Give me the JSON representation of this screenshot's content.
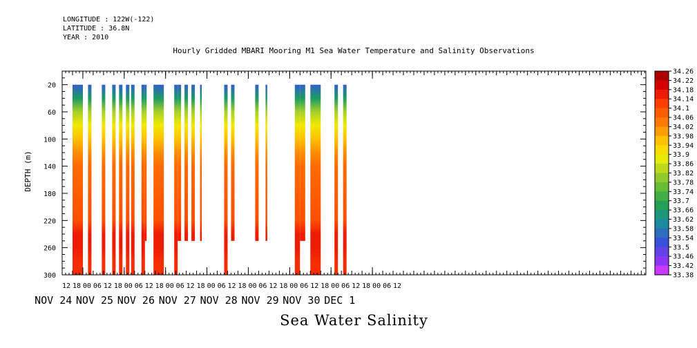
{
  "header": {
    "longitude": "LONGITUDE : 122W(-122)",
    "latitude": "LATITUDE : 36.8N",
    "year": "YEAR : 2010"
  },
  "chart_data": {
    "type": "heatmap",
    "title": "Hourly Gridded MBARI Mooring M1 Sea Water Temperature and Salinity Observations",
    "footer_title": "Sea Water Salinity",
    "ylabel": "DEPTH (m)",
    "xlabel": "",
    "y_axis": {
      "reversed": true,
      "ylim": [
        300,
        0
      ],
      "ticks": [
        20,
        60,
        100,
        140,
        180,
        220,
        260,
        300
      ]
    },
    "x_axis": {
      "hour_labels": [
        "12",
        "18",
        "00",
        "06",
        "12",
        "18",
        "00",
        "06",
        "12",
        "18",
        "00",
        "06",
        "12",
        "18",
        "00",
        "06",
        "12",
        "18",
        "00",
        "06",
        "12",
        "18",
        "00",
        "06",
        "12",
        "18",
        "00",
        "06",
        "12",
        "18",
        "00",
        "06",
        "12"
      ],
      "day_labels": [
        "NOV 24",
        "NOV 25",
        "NOV 26",
        "NOV 27",
        "NOV 28",
        "NOV 29",
        "NOV 30",
        "DEC  1"
      ]
    },
    "colorbar": {
      "labels": [
        "34.26",
        "34.22",
        "34.18",
        "34.14",
        "34.1",
        "34.06",
        "34.02",
        "33.98",
        "33.94",
        "33.9",
        "33.86",
        "33.82",
        "33.78",
        "33.74",
        "33.7",
        "33.66",
        "33.62",
        "33.58",
        "33.54",
        "33.5",
        "33.46",
        "33.42",
        "33.38"
      ],
      "range": [
        33.38,
        34.26
      ]
    },
    "profile": [
      [
        20,
        33.54
      ],
      [
        40,
        33.66
      ],
      [
        60,
        33.82
      ],
      [
        80,
        33.9
      ],
      [
        100,
        33.96
      ],
      [
        120,
        34.02
      ],
      [
        140,
        34.06
      ],
      [
        180,
        34.08
      ],
      [
        220,
        34.1
      ],
      [
        240,
        34.16
      ],
      [
        260,
        34.16
      ],
      [
        280,
        34.14
      ],
      [
        300,
        34.14
      ]
    ],
    "observation_bars": [
      {
        "start": "NOV 24 18",
        "end": "NOV 25 00",
        "max_depth": 300
      },
      {
        "start": "NOV 25 03",
        "end": "NOV 25 05",
        "max_depth": 300
      },
      {
        "start": "NOV 25 11",
        "end": "NOV 25 13",
        "max_depth": 300
      },
      {
        "start": "NOV 25 17",
        "end": "NOV 25 19",
        "max_depth": 300
      },
      {
        "start": "NOV 25 21",
        "end": "NOV 25 23",
        "max_depth": 300
      },
      {
        "start": "NOV 26 01",
        "end": "NOV 26 03",
        "max_depth": 300
      },
      {
        "start": "NOV 26 04",
        "end": "NOV 26 06",
        "max_depth": 300
      },
      {
        "start": "NOV 26 10",
        "end": "NOV 26 12",
        "max_depth": 300
      },
      {
        "start": "NOV 26 12",
        "end": "NOV 26 13",
        "max_depth": 250
      },
      {
        "start": "NOV 26 17",
        "end": "NOV 26 23",
        "max_depth": 300
      },
      {
        "start": "NOV 27 05",
        "end": "NOV 27 07",
        "max_depth": 300
      },
      {
        "start": "NOV 27 07",
        "end": "NOV 27 09",
        "max_depth": 250
      },
      {
        "start": "NOV 27 11",
        "end": "NOV 27 13",
        "max_depth": 250
      },
      {
        "start": "NOV 27 15",
        "end": "NOV 27 17",
        "max_depth": 250
      },
      {
        "start": "NOV 27 20",
        "end": "NOV 27 21",
        "max_depth": 250
      },
      {
        "start": "NOV 28 10",
        "end": "NOV 28 12",
        "max_depth": 300
      },
      {
        "start": "NOV 28 14",
        "end": "NOV 28 16",
        "max_depth": 250
      },
      {
        "start": "NOV 29 04",
        "end": "NOV 29 06",
        "max_depth": 250
      },
      {
        "start": "NOV 29 10",
        "end": "NOV 29 11",
        "max_depth": 250
      },
      {
        "start": "NOV 30 03",
        "end": "NOV 30 06",
        "max_depth": 300
      },
      {
        "start": "NOV 30 06",
        "end": "NOV 30 09",
        "max_depth": 250
      },
      {
        "start": "NOV 30 12",
        "end": "NOV 30 18",
        "max_depth": 300
      },
      {
        "start": "DEC 1 02",
        "end": "DEC 1 04",
        "max_depth": 300
      },
      {
        "start": "DEC 1 07",
        "end": "DEC 1 09",
        "max_depth": 300
      }
    ]
  }
}
